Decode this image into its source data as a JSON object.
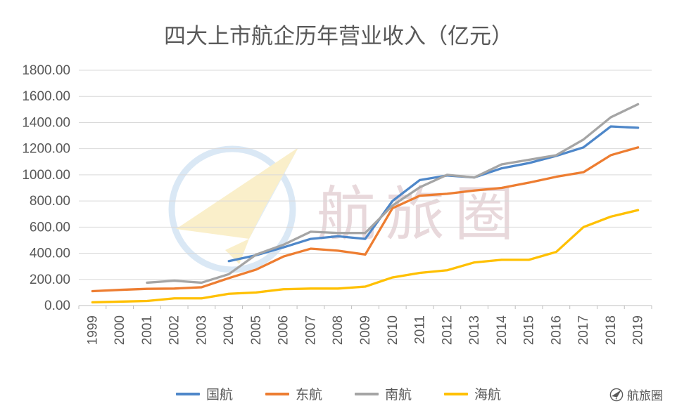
{
  "chart_data": {
    "type": "line",
    "title": "四大上市航企历年营业收入（亿元）",
    "xlabel": "",
    "ylabel": "",
    "ylim": [
      0,
      1800
    ],
    "y_tick_step": 200,
    "y_ticks": [
      "0.00",
      "200.00",
      "400.00",
      "600.00",
      "800.00",
      "1000.00",
      "1200.00",
      "1400.00",
      "1600.00",
      "1800.00"
    ],
    "grid": true,
    "legend_position": "bottom",
    "categories": [
      "1999",
      "2000",
      "2001",
      "2002",
      "2003",
      "2004",
      "2005",
      "2006",
      "2007",
      "2008",
      "2009",
      "2010",
      "2011",
      "2012",
      "2013",
      "2014",
      "2015",
      "2016",
      "2017",
      "2018",
      "2019"
    ],
    "series": [
      {
        "name": "国航",
        "color": "#4E87C9",
        "values": [
          null,
          null,
          null,
          null,
          null,
          340,
          385,
          445,
          510,
          530,
          510,
          800,
          960,
          995,
          980,
          1050,
          1090,
          1145,
          1210,
          1370,
          1360
        ]
      },
      {
        "name": "东航",
        "color": "#ED7D31",
        "values": [
          110,
          120,
          128,
          130,
          140,
          210,
          275,
          375,
          435,
          420,
          390,
          745,
          840,
          855,
          880,
          900,
          940,
          985,
          1020,
          1150,
          1210
        ]
      },
      {
        "name": "南航",
        "color": "#A5A5A5",
        "values": [
          null,
          null,
          175,
          190,
          175,
          240,
          390,
          465,
          565,
          555,
          555,
          765,
          905,
          1000,
          980,
          1080,
          1115,
          1150,
          1270,
          1440,
          1540
        ]
      },
      {
        "name": "海航",
        "color": "#FFC000",
        "values": [
          25,
          30,
          35,
          55,
          55,
          90,
          100,
          125,
          130,
          130,
          145,
          215,
          250,
          270,
          330,
          350,
          350,
          410,
          600,
          680,
          730
        ]
      }
    ]
  },
  "watermark": {
    "text": "航旅圈",
    "icon": "paper-plane-icon"
  },
  "brand": {
    "text": "航旅圈",
    "icon": "paper-plane-icon"
  },
  "colors": {
    "title_text": "#595959",
    "axis_text": "#595959",
    "gridline": "#D9D9D9",
    "axis_line": "#BFBFBF",
    "watermark_circle": "#BDD7EE",
    "watermark_plane": "#F6E2A0",
    "watermark_text": "#D6B9BE"
  }
}
